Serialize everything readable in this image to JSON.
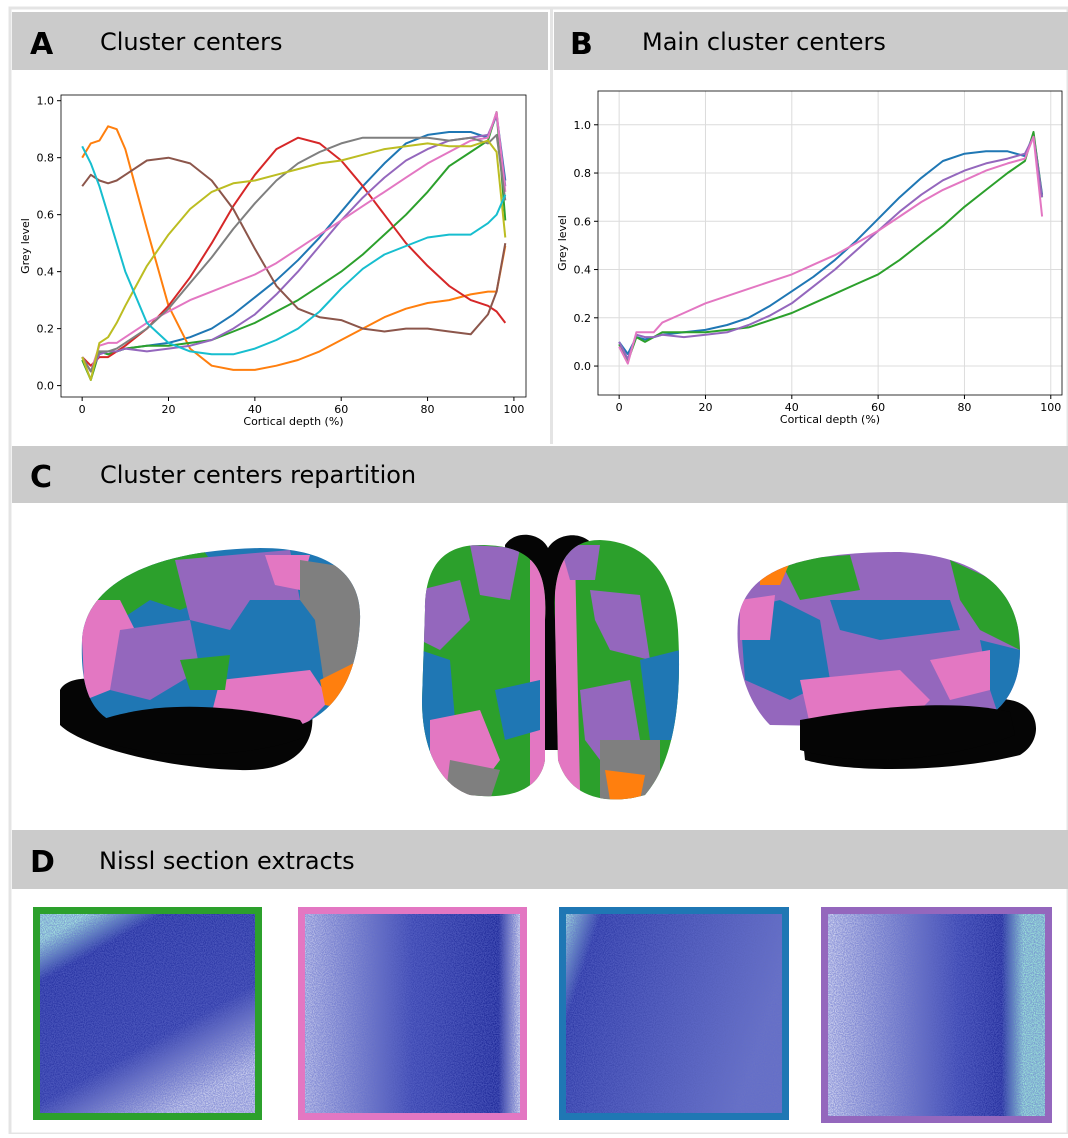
{
  "panels": [
    {
      "letter": "A",
      "title": "Cluster centers"
    },
    {
      "letter": "B",
      "title": "Main cluster centers"
    },
    {
      "letter": "C",
      "title": "Cluster centers repartition"
    },
    {
      "letter": "D",
      "title": "Nissl section extracts"
    }
  ],
  "chart_data": [
    {
      "type": "line",
      "x_label": "Cortical depth (%)",
      "y_label": "Grey level",
      "grid": false,
      "x": [
        0,
        2,
        4,
        6,
        8,
        10,
        15,
        20,
        25,
        30,
        35,
        40,
        45,
        50,
        55,
        60,
        65,
        70,
        75,
        80,
        85,
        90,
        94,
        96,
        98
      ],
      "xlim": [
        -4.9,
        102.8
      ],
      "xticks": [
        0,
        20,
        40,
        60,
        80,
        100
      ],
      "ylim": [
        -0.04,
        1.02
      ],
      "yticks": [
        {
          "value": 0,
          "label": "0.0"
        },
        0.2,
        0.4,
        0.6,
        0.8,
        {
          "value": 1,
          "label": "1.0"
        }
      ],
      "series": [
        {
          "color": "#1f77b4",
          "values": [
            0.1,
            0.05,
            0.12,
            0.11,
            0.12,
            0.13,
            0.14,
            0.15,
            0.17,
            0.2,
            0.25,
            0.31,
            0.37,
            0.44,
            0.52,
            0.61,
            0.7,
            0.78,
            0.85,
            0.88,
            0.89,
            0.89,
            0.87,
            0.95,
            0.72
          ]
        },
        {
          "color": "#ff7f0e",
          "values": [
            0.8,
            0.85,
            0.86,
            0.91,
            0.9,
            0.83,
            0.55,
            0.28,
            0.13,
            0.07,
            0.055,
            0.055,
            0.07,
            0.09,
            0.12,
            0.16,
            0.2,
            0.24,
            0.27,
            0.29,
            0.3,
            0.32,
            0.33,
            0.33,
            0.49
          ]
        },
        {
          "color": "#2ca02c",
          "values": [
            0.09,
            0.02,
            0.12,
            0.11,
            0.12,
            0.13,
            0.14,
            0.14,
            0.15,
            0.16,
            0.19,
            0.22,
            0.26,
            0.3,
            0.35,
            0.4,
            0.46,
            0.53,
            0.6,
            0.68,
            0.77,
            0.82,
            0.86,
            0.96,
            0.58
          ]
        },
        {
          "color": "#d62728",
          "values": [
            0.1,
            0.07,
            0.1,
            0.1,
            0.12,
            0.14,
            0.2,
            0.28,
            0.38,
            0.5,
            0.63,
            0.74,
            0.83,
            0.87,
            0.85,
            0.79,
            0.7,
            0.6,
            0.5,
            0.42,
            0.35,
            0.3,
            0.28,
            0.26,
            0.22
          ]
        },
        {
          "color": "#9467bd",
          "values": [
            0.1,
            0.05,
            0.11,
            0.12,
            0.12,
            0.13,
            0.12,
            0.13,
            0.14,
            0.16,
            0.2,
            0.25,
            0.32,
            0.4,
            0.49,
            0.58,
            0.66,
            0.73,
            0.79,
            0.83,
            0.86,
            0.87,
            0.88,
            0.95,
            0.7
          ]
        },
        {
          "color": "#8c564b",
          "values": [
            0.7,
            0.74,
            0.72,
            0.71,
            0.72,
            0.74,
            0.79,
            0.8,
            0.78,
            0.72,
            0.62,
            0.48,
            0.35,
            0.27,
            0.24,
            0.23,
            0.2,
            0.19,
            0.2,
            0.2,
            0.19,
            0.18,
            0.25,
            0.33,
            0.5
          ]
        },
        {
          "color": "#e377c2",
          "values": [
            0.1,
            0.05,
            0.14,
            0.15,
            0.15,
            0.17,
            0.22,
            0.26,
            0.3,
            0.33,
            0.36,
            0.39,
            0.43,
            0.48,
            0.53,
            0.58,
            0.63,
            0.68,
            0.73,
            0.78,
            0.82,
            0.86,
            0.87,
            0.96,
            0.68
          ]
        },
        {
          "color": "#7f7f7f",
          "values": [
            0.1,
            0.05,
            0.12,
            0.12,
            0.13,
            0.15,
            0.2,
            0.27,
            0.36,
            0.45,
            0.55,
            0.64,
            0.72,
            0.78,
            0.82,
            0.85,
            0.87,
            0.87,
            0.87,
            0.87,
            0.86,
            0.87,
            0.85,
            0.88,
            0.65
          ]
        },
        {
          "color": "#bcbd22",
          "values": [
            0.1,
            0.02,
            0.15,
            0.17,
            0.22,
            0.28,
            0.42,
            0.53,
            0.62,
            0.68,
            0.71,
            0.72,
            0.74,
            0.76,
            0.78,
            0.79,
            0.81,
            0.83,
            0.84,
            0.85,
            0.84,
            0.84,
            0.86,
            0.82,
            0.52
          ]
        },
        {
          "color": "#17becf",
          "values": [
            0.84,
            0.78,
            0.7,
            0.6,
            0.5,
            0.4,
            0.22,
            0.15,
            0.12,
            0.11,
            0.11,
            0.13,
            0.16,
            0.2,
            0.26,
            0.34,
            0.41,
            0.46,
            0.49,
            0.52,
            0.53,
            0.53,
            0.57,
            0.6,
            0.67
          ]
        }
      ]
    },
    {
      "type": "line",
      "x_label": "Cortical depth (%)",
      "y_label": "Grey level",
      "grid": true,
      "x": [
        0,
        2,
        4,
        6,
        8,
        10,
        15,
        20,
        25,
        30,
        35,
        40,
        45,
        50,
        55,
        60,
        65,
        70,
        75,
        80,
        85,
        90,
        94,
        96,
        98
      ],
      "xlim": [
        -4.9,
        102.6
      ],
      "xticks": [
        0,
        20,
        40,
        60,
        80,
        100
      ],
      "ylim": [
        -0.12,
        1.14
      ],
      "yticks": [
        {
          "value": 0,
          "label": "0.0"
        },
        0.2,
        0.4,
        0.6,
        0.8,
        {
          "value": 1,
          "label": "1.0"
        }
      ],
      "series": [
        {
          "color": "#1f77b4",
          "values": [
            0.1,
            0.05,
            0.12,
            0.11,
            0.12,
            0.13,
            0.14,
            0.15,
            0.17,
            0.2,
            0.25,
            0.31,
            0.37,
            0.44,
            0.52,
            0.61,
            0.7,
            0.78,
            0.85,
            0.88,
            0.89,
            0.89,
            0.87,
            0.96,
            0.71
          ]
        },
        {
          "color": "#2ca02c",
          "values": [
            0.09,
            0.02,
            0.12,
            0.1,
            0.12,
            0.14,
            0.14,
            0.14,
            0.15,
            0.16,
            0.19,
            0.22,
            0.26,
            0.3,
            0.34,
            0.38,
            0.44,
            0.51,
            0.58,
            0.66,
            0.73,
            0.8,
            0.85,
            0.97,
            0.7
          ]
        },
        {
          "color": "#9467bd",
          "values": [
            0.1,
            0.03,
            0.13,
            0.12,
            0.12,
            0.13,
            0.12,
            0.13,
            0.14,
            0.17,
            0.21,
            0.26,
            0.33,
            0.4,
            0.48,
            0.56,
            0.64,
            0.71,
            0.77,
            0.81,
            0.84,
            0.86,
            0.88,
            0.95,
            0.7
          ]
        },
        {
          "color": "#e377c2",
          "values": [
            0.08,
            0.01,
            0.14,
            0.14,
            0.14,
            0.18,
            0.22,
            0.26,
            0.29,
            0.32,
            0.35,
            0.38,
            0.42,
            0.46,
            0.51,
            0.56,
            0.62,
            0.68,
            0.73,
            0.77,
            0.81,
            0.84,
            0.86,
            0.95,
            0.62
          ]
        }
      ]
    }
  ]
}
